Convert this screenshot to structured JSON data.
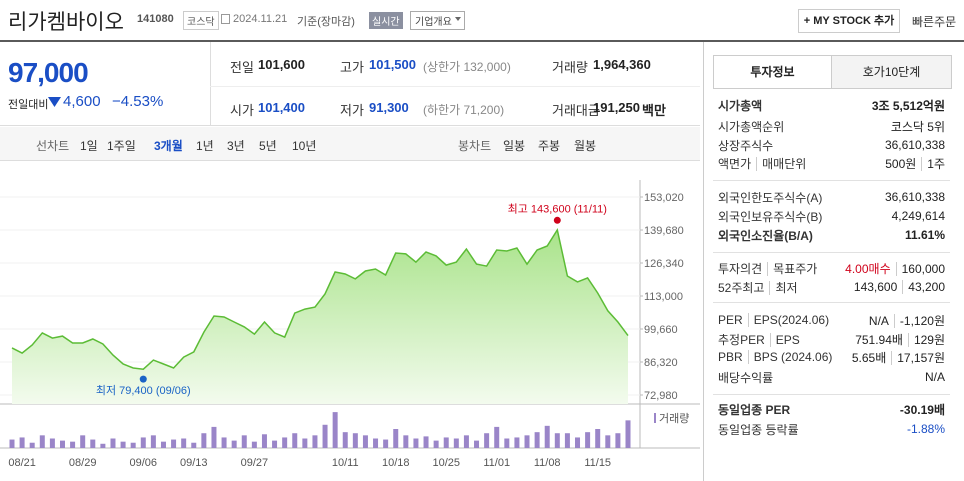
{
  "header": {
    "name": "리가켐바이오",
    "code": "141080",
    "market": "코스닥",
    "date": "2024.11.21",
    "basis": "기준(장마감)",
    "realtime": "실시간",
    "company_info": "기업개요",
    "my_stock": "+ MY STOCK 추가",
    "quick_order": "빠른주문"
  },
  "price": {
    "current": "97,000",
    "change_label": "전일대비",
    "change": "4,600",
    "change_rate": "−4.53%"
  },
  "summary": {
    "rows": [
      [
        {
          "label": "전일",
          "value": "101,600"
        },
        {
          "label": "고가",
          "value": "101,500",
          "note": "(상한가 132,000)"
        },
        {
          "label": "거래량",
          "value": "1,964,360"
        }
      ],
      [
        {
          "label": "시가",
          "value": "101,400"
        },
        {
          "label": "저가",
          "value": "91,300",
          "note": "(하한가 71,200)"
        },
        {
          "label": "거래대금",
          "value": "191,250",
          "unit": "백만"
        }
      ]
    ]
  },
  "period_tabs": {
    "line_chart": "선차트",
    "line_periods": [
      "1일",
      "1주일",
      "3개월",
      "1년",
      "3년",
      "5년",
      "10년"
    ],
    "candle_chart": "봉차트",
    "candle_periods": [
      "일봉",
      "주봉",
      "월봉"
    ]
  },
  "chart_data": {
    "type": "line",
    "categories": [
      null,
      "08/21",
      null,
      null,
      null,
      null,
      null,
      "08/29",
      null,
      null,
      null,
      null,
      null,
      "09/06",
      null,
      null,
      null,
      null,
      "09/13",
      null,
      null,
      null,
      null,
      null,
      "09/27",
      null,
      null,
      null,
      null,
      null,
      null,
      null,
      null,
      "10/11",
      null,
      null,
      null,
      null,
      "10/18",
      null,
      null,
      null,
      null,
      "10/25",
      null,
      null,
      null,
      null,
      "11/01",
      null,
      null,
      null,
      null,
      "11/08",
      null,
      null,
      null,
      null,
      "11/15",
      null,
      null,
      null
    ],
    "series": [
      {
        "color": "#5cbc36",
        "values": [
          92000,
          89900,
          93200,
          98100,
          96000,
          96800,
          94000,
          94000,
          95600,
          93600,
          89100,
          85500,
          83900,
          83400,
          87100,
          85500,
          83900,
          88300,
          90400,
          98400,
          104900,
          104500,
          102500,
          100500,
          97600,
          102500,
          98100,
          96400,
          106100,
          107700,
          108500,
          113800,
          122700,
          121900,
          119900,
          123100,
          123900,
          121500,
          130400,
          130000,
          126700,
          130800,
          129200,
          125500,
          126700,
          132000,
          125900,
          125100,
          131600,
          131200,
          132400,
          125900,
          131600,
          133200,
          139700,
          121100,
          118700,
          120300,
          114200,
          107000,
          102500,
          97000
        ]
      },
      {
        "name": "거래량",
        "color": "#9a85c8",
        "axis": "y2",
        "values": [
          600000,
          750000,
          375000,
          900000,
          675000,
          525000,
          450000,
          900000,
          600000,
          300000,
          675000,
          450000,
          375000,
          750000,
          900000,
          450000,
          600000,
          675000,
          375000,
          1050000,
          1500000,
          750000,
          525000,
          900000,
          450000,
          975000,
          525000,
          750000,
          1050000,
          675000,
          900000,
          1650000,
          2550000,
          1125000,
          1050000,
          900000,
          675000,
          600000,
          1350000,
          900000,
          675000,
          825000,
          525000,
          750000,
          675000,
          900000,
          525000,
          1050000,
          1500000,
          675000,
          750000,
          900000,
          1125000,
          1575000,
          1050000,
          1050000,
          750000,
          1125000,
          1350000,
          900000,
          1050000,
          1964360
        ]
      }
    ],
    "ylim": [
      72980,
      153020
    ],
    "yticks": [
      {
        "value": 153020,
        "label": "153,020"
      },
      {
        "value": 139680,
        "label": "139,680"
      },
      {
        "value": 126340,
        "label": "126,340"
      },
      {
        "value": 113000,
        "label": "113,000"
      },
      {
        "value": 99660,
        "label": "99,660"
      },
      {
        "value": 86320,
        "label": "86,320"
      },
      {
        "value": 72980,
        "label": "72,980"
      }
    ],
    "y2lim": [
      0,
      2700000
    ],
    "grid": true,
    "high": {
      "value": 143600,
      "label": "최고 143,600 (11/11)",
      "color": "#d0021b"
    },
    "low": {
      "value": 79400,
      "label": "최저 79,400 (09/06)",
      "color": "#1a63c6"
    }
  },
  "invest": {
    "tabs": [
      "투자정보",
      "호가10단계"
    ],
    "rows": [
      {
        "labels": [
          "시가총액"
        ],
        "values": [
          "3조 5,512억원"
        ]
      },
      {
        "labels": [
          "시가총액순위"
        ],
        "values": [
          "코스닥 5위"
        ]
      },
      {
        "labels": [
          "상장주식수"
        ],
        "values": [
          "36,610,338"
        ]
      },
      {
        "labels": [
          "액면가",
          "매매단위"
        ],
        "values": [
          "500원",
          "1주"
        ]
      },
      {
        "labels": [
          "외국인한도주식수(A)"
        ],
        "values": [
          "36,610,338"
        ]
      },
      {
        "labels": [
          "외국인보유주식수(B)"
        ],
        "values": [
          "4,249,614"
        ]
      },
      {
        "labels": [
          "외국인소진율(B/A)"
        ],
        "values": [
          "11.61%"
        ]
      },
      {
        "labels": [
          "투자의견",
          "목표주가"
        ],
        "values": [
          "4.00매수",
          "160,000"
        ]
      },
      {
        "labels": [
          "52주최고",
          "최저"
        ],
        "values": [
          "143,600",
          "43,200"
        ]
      },
      {
        "labels": [
          "PER",
          "EPS(2024.06)"
        ],
        "values": [
          "N/A",
          "-1,120원"
        ]
      },
      {
        "labels": [
          "추정PER",
          "EPS"
        ],
        "values": [
          "751.94배",
          "129원"
        ]
      },
      {
        "labels": [
          "PBR",
          "BPS (2024.06)"
        ],
        "values": [
          "5.65배",
          "17,157원"
        ]
      },
      {
        "labels": [
          "배당수익률"
        ],
        "values": [
          "N/A"
        ]
      },
      {
        "labels": [
          "동일업종 PER"
        ],
        "values": [
          "-30.19배"
        ]
      },
      {
        "labels": [
          "동일업종 등락률"
        ],
        "values": [
          "-1.88%"
        ]
      }
    ]
  }
}
